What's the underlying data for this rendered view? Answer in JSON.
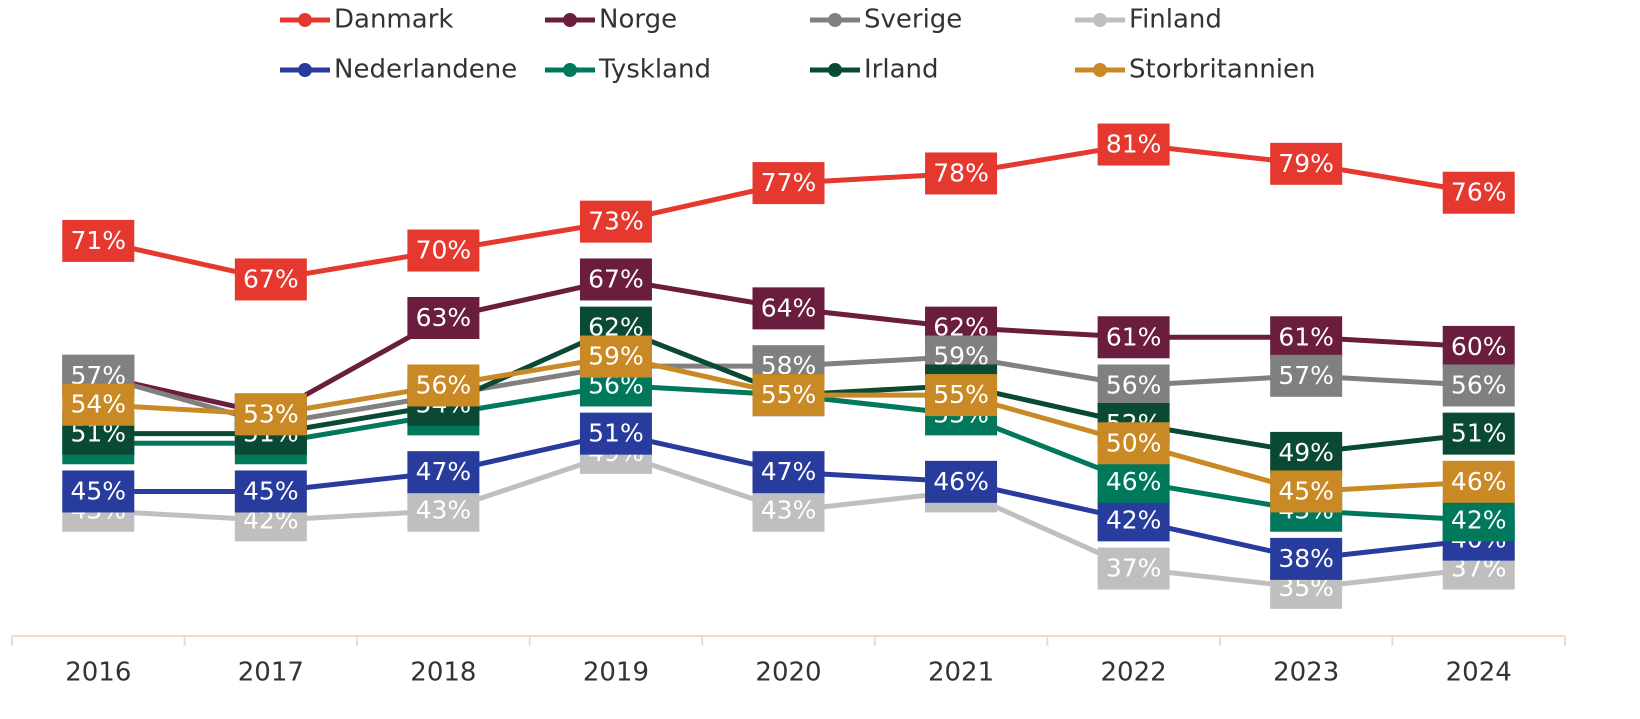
{
  "chart_data": {
    "type": "line",
    "categories": [
      "2016",
      "2017",
      "2018",
      "2019",
      "2020",
      "2021",
      "2022",
      "2023",
      "2024"
    ],
    "ylim": [
      30,
      96
    ],
    "series": [
      {
        "name": "Danmark",
        "color": "#e5392f",
        "values": [
          71,
          67,
          70,
          73,
          77,
          78,
          81,
          79,
          76
        ],
        "value_labels": [
          "71%",
          "67%",
          "70%",
          "73%",
          "77%",
          "78%",
          "81%",
          "79%",
          "76%"
        ]
      },
      {
        "name": "Norge",
        "color": "#6a1d3c",
        "values": [
          57,
          53,
          63,
          67,
          64,
          62,
          61,
          61,
          60
        ],
        "value_labels": [
          "57%",
          "53%",
          "63%",
          "67%",
          "64%",
          "62%",
          "61%",
          "61%",
          "60%"
        ]
      },
      {
        "name": "Sverige",
        "color": "#808080",
        "values": [
          57,
          52,
          55,
          58,
          58,
          59,
          56,
          57,
          56
        ],
        "value_labels": [
          "57%",
          "52%",
          "55%",
          "58%",
          "58%",
          "59%",
          "56%",
          "57%",
          "56%"
        ]
      },
      {
        "name": "Finland",
        "color": "#bfbfbf",
        "values": [
          43,
          42,
          43,
          49,
          43,
          45,
          37,
          35,
          37
        ],
        "value_labels": [
          "43%",
          "42%",
          "43%",
          "49%",
          "43%",
          "45%",
          "37%",
          "35%",
          "37%"
        ]
      },
      {
        "name": "Nederlandene",
        "color": "#283c9e",
        "values": [
          45,
          45,
          47,
          51,
          47,
          46,
          42,
          38,
          40
        ],
        "value_labels": [
          "45%",
          "45%",
          "47%",
          "51%",
          "47%",
          "46%",
          "42%",
          "38%",
          "40%"
        ]
      },
      {
        "name": "Tyskland",
        "color": "#00785c",
        "values": [
          50,
          50,
          53,
          56,
          55,
          53,
          46,
          43,
          42
        ],
        "value_labels": [
          "50%",
          "50%",
          "53%",
          "56%",
          "55%",
          "53%",
          "46%",
          "43%",
          "42%"
        ]
      },
      {
        "name": "Irland",
        "color": "#0a4a34",
        "values": [
          51,
          51,
          54,
          62,
          55,
          56,
          52,
          49,
          51
        ],
        "value_labels": [
          "51%",
          "51%",
          "54%",
          "62%",
          "55%",
          "56%",
          "52%",
          "49%",
          "51%"
        ]
      },
      {
        "name": "Storbritannien",
        "color": "#c98925",
        "values": [
          54,
          53,
          56,
          59,
          55,
          55,
          50,
          45,
          46
        ],
        "value_labels": [
          "54%",
          "53%",
          "56%",
          "59%",
          "55%",
          "55%",
          "50%",
          "45%",
          "46%"
        ]
      }
    ]
  }
}
